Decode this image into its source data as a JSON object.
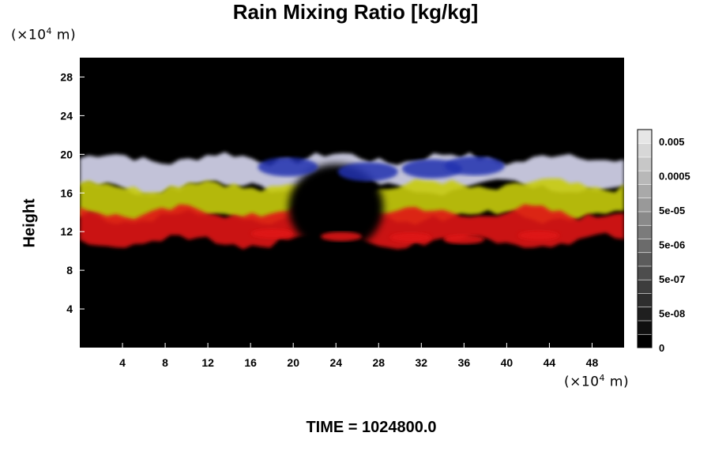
{
  "chart_data": {
    "type": "heatmap",
    "title": "Rain Mixing Ratio [kg/kg]",
    "ylabel": "Height",
    "x_unit": {
      "prefix": "(×10",
      "exp": "4",
      "suffix": " m)"
    },
    "y_unit": {
      "prefix": "(×10",
      "exp": "4",
      "suffix": " m)"
    },
    "xlim": [
      0,
      51
    ],
    "ylim": [
      0,
      30
    ],
    "x_ticks": [
      4,
      8,
      12,
      16,
      20,
      24,
      28,
      32,
      36,
      40,
      44,
      48
    ],
    "y_ticks": [
      4,
      8,
      12,
      16,
      20,
      24,
      28
    ],
    "colorbar": {
      "labels": [
        "0.005",
        "0.0005",
        "5e-05",
        "5e-06",
        "5e-07",
        "5e-08",
        "0"
      ],
      "levels": 16
    },
    "bands": [
      {
        "color": "#d8d8f0",
        "ymin": 16.6,
        "ymax": 19.6
      },
      {
        "color": "#c8cc10",
        "ymin": 13.6,
        "ymax": 16.8
      },
      {
        "color": "#e01818",
        "ymin": 11.0,
        "ymax": 14.0
      }
    ],
    "footer": "TIME = 1024800.0"
  }
}
